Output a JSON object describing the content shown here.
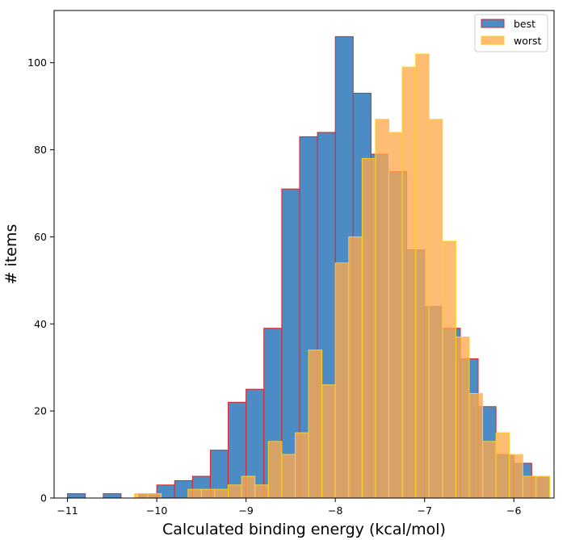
{
  "chart_data": {
    "type": "bar",
    "title": "",
    "xlabel": "Calculated binding energy (kcal/mol)",
    "ylabel": "# items",
    "xlim": [
      -11.15,
      -5.55
    ],
    "ylim": [
      0,
      112
    ],
    "xticks": [
      -11,
      -10,
      -9,
      -8,
      -7,
      -6
    ],
    "xtick_labels": [
      "−11",
      "−10",
      "−9",
      "−8",
      "−7",
      "−6"
    ],
    "yticks": [
      0,
      20,
      40,
      60,
      80,
      100
    ],
    "ytick_labels": [
      "0",
      "20",
      "40",
      "60",
      "80",
      "100"
    ],
    "legend_position": "top-right",
    "series": [
      {
        "name": "best",
        "fill": "#4c8bc4",
        "edge": "#d62728",
        "bins": [
          {
            "x0": -11.0,
            "x1": -10.8,
            "count": 1
          },
          {
            "x0": -10.8,
            "x1": -10.6,
            "count": 0
          },
          {
            "x0": -10.6,
            "x1": -10.4,
            "count": 1
          },
          {
            "x0": -10.4,
            "x1": -10.2,
            "count": 0
          },
          {
            "x0": -10.2,
            "x1": -10.0,
            "count": 1
          },
          {
            "x0": -10.0,
            "x1": -9.8,
            "count": 3
          },
          {
            "x0": -9.8,
            "x1": -9.6,
            "count": 4
          },
          {
            "x0": -9.6,
            "x1": -9.4,
            "count": 5
          },
          {
            "x0": -9.4,
            "x1": -9.2,
            "count": 11
          },
          {
            "x0": -9.2,
            "x1": -9.0,
            "count": 22
          },
          {
            "x0": -9.0,
            "x1": -8.8,
            "count": 25
          },
          {
            "x0": -8.8,
            "x1": -8.6,
            "count": 39
          },
          {
            "x0": -8.6,
            "x1": -8.4,
            "count": 71
          },
          {
            "x0": -8.4,
            "x1": -8.2,
            "count": 83
          },
          {
            "x0": -8.2,
            "x1": -8.0,
            "count": 84
          },
          {
            "x0": -8.0,
            "x1": -7.8,
            "count": 106
          },
          {
            "x0": -7.8,
            "x1": -7.6,
            "count": 93
          },
          {
            "x0": -7.6,
            "x1": -7.4,
            "count": 79
          },
          {
            "x0": -7.4,
            "x1": -7.2,
            "count": 75
          },
          {
            "x0": -7.2,
            "x1": -7.0,
            "count": 57
          },
          {
            "x0": -7.0,
            "x1": -6.8,
            "count": 44
          },
          {
            "x0": -6.8,
            "x1": -6.6,
            "count": 39
          },
          {
            "x0": -6.6,
            "x1": -6.4,
            "count": 32
          },
          {
            "x0": -6.4,
            "x1": -6.2,
            "count": 21
          },
          {
            "x0": -6.2,
            "x1": -6.0,
            "count": 10
          },
          {
            "x0": -6.0,
            "x1": -5.8,
            "count": 8
          },
          {
            "x0": -5.8,
            "x1": -5.6,
            "count": 5
          }
        ]
      },
      {
        "name": "worst",
        "fill": "#ffa94d",
        "edge": "#ffd21f",
        "bins": [
          {
            "x0": -10.25,
            "x1": -10.1,
            "count": 1
          },
          {
            "x0": -10.1,
            "x1": -9.95,
            "count": 1
          },
          {
            "x0": -9.95,
            "x1": -9.8,
            "count": 0
          },
          {
            "x0": -9.8,
            "x1": -9.65,
            "count": 0
          },
          {
            "x0": -9.65,
            "x1": -9.5,
            "count": 2
          },
          {
            "x0": -9.5,
            "x1": -9.35,
            "count": 2
          },
          {
            "x0": -9.35,
            "x1": -9.2,
            "count": 2
          },
          {
            "x0": -9.2,
            "x1": -9.05,
            "count": 3
          },
          {
            "x0": -9.05,
            "x1": -8.9,
            "count": 5
          },
          {
            "x0": -8.9,
            "x1": -8.75,
            "count": 3
          },
          {
            "x0": -8.75,
            "x1": -8.6,
            "count": 13
          },
          {
            "x0": -8.6,
            "x1": -8.45,
            "count": 10
          },
          {
            "x0": -8.45,
            "x1": -8.3,
            "count": 15
          },
          {
            "x0": -8.3,
            "x1": -8.15,
            "count": 34
          },
          {
            "x0": -8.15,
            "x1": -8.0,
            "count": 26
          },
          {
            "x0": -8.0,
            "x1": -7.85,
            "count": 54
          },
          {
            "x0": -7.85,
            "x1": -7.7,
            "count": 60
          },
          {
            "x0": -7.7,
            "x1": -7.55,
            "count": 78
          },
          {
            "x0": -7.55,
            "x1": -7.4,
            "count": 87
          },
          {
            "x0": -7.4,
            "x1": -7.25,
            "count": 84
          },
          {
            "x0": -7.25,
            "x1": -7.1,
            "count": 99
          },
          {
            "x0": -7.1,
            "x1": -6.95,
            "count": 102
          },
          {
            "x0": -6.95,
            "x1": -6.8,
            "count": 87
          },
          {
            "x0": -6.8,
            "x1": -6.65,
            "count": 59
          },
          {
            "x0": -6.65,
            "x1": -6.5,
            "count": 37
          },
          {
            "x0": -6.5,
            "x1": -6.35,
            "count": 24
          },
          {
            "x0": -6.35,
            "x1": -6.2,
            "count": 13
          },
          {
            "x0": -6.2,
            "x1": -6.05,
            "count": 15
          },
          {
            "x0": -6.05,
            "x1": -5.9,
            "count": 10
          },
          {
            "x0": -5.9,
            "x1": -5.75,
            "count": 5
          },
          {
            "x0": -5.75,
            "x1": -5.6,
            "count": 5
          }
        ]
      }
    ]
  }
}
